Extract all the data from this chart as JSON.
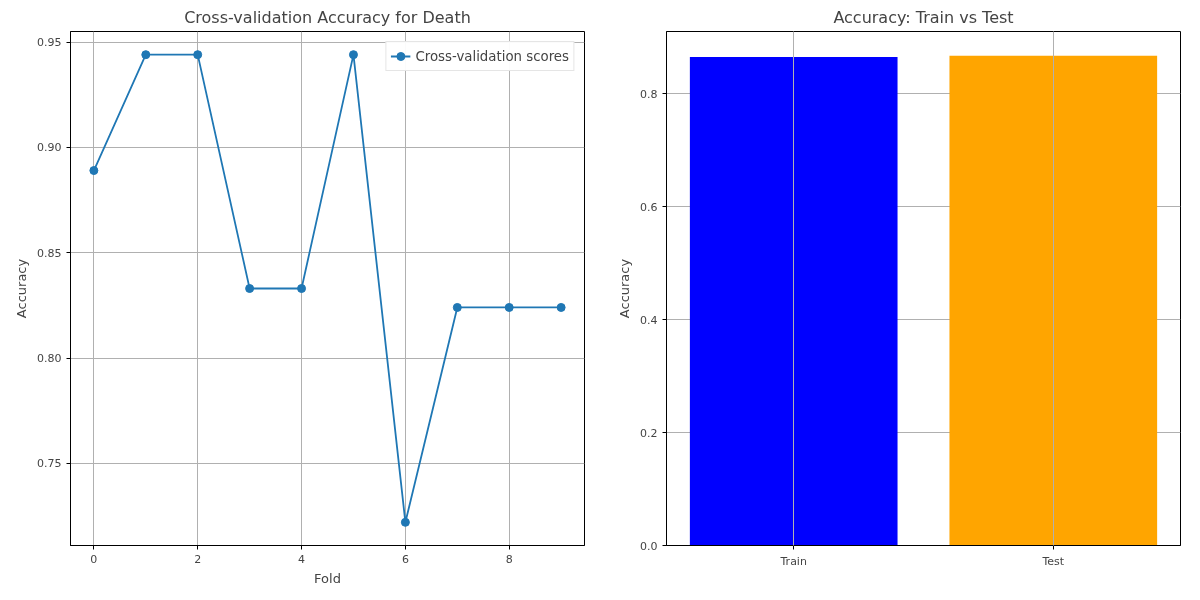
{
  "chart_data": [
    {
      "type": "line",
      "title": "Cross-validation Accuracy for Death",
      "xlabel": "Fold",
      "ylabel": "Accuracy",
      "x": [
        0,
        1,
        2,
        3,
        4,
        5,
        6,
        7,
        8,
        9
      ],
      "series": [
        {
          "name": "Cross-validation scores",
          "color": "#1f77b4",
          "values": [
            0.889,
            0.944,
            0.944,
            0.833,
            0.833,
            0.944,
            0.722,
            0.824,
            0.824,
            0.824
          ]
        }
      ],
      "xlim": [
        -0.45,
        9.45
      ],
      "xticks": [
        0,
        2,
        4,
        6,
        8
      ],
      "ylim": [
        0.711,
        0.955
      ],
      "yticks": [
        0.75,
        {
          "value": 0.8,
          "label": "0.80"
        },
        0.85,
        {
          "value": 0.9,
          "label": "0.90"
        },
        0.95
      ],
      "grid": true,
      "legend": "top right",
      "marker": "circle",
      "line_style": "solid"
    },
    {
      "type": "bar",
      "title": "Accuracy: Train vs Test",
      "ylabel": "Accuracy",
      "categories": [
        "Train",
        "Test"
      ],
      "values": [
        0.865,
        0.867
      ],
      "colors": [
        "#0000ff",
        "#ffa500"
      ],
      "ylim": [
        0,
        0.91
      ],
      "yticks": [
        {
          "value": 0,
          "label": "0.0"
        },
        0.2,
        0.4,
        0.6,
        0.8
      ],
      "grid": true
    }
  ]
}
